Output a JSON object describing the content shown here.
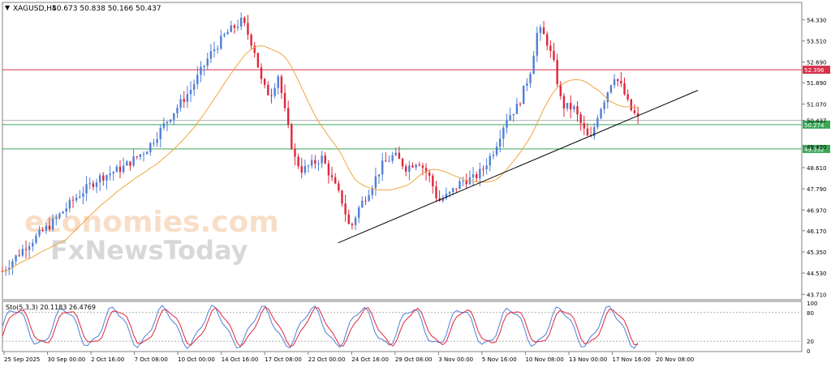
{
  "header": {
    "symbol": "XAGUSD,H4",
    "ohlc": "50.673 50.838 50.166 50.437"
  },
  "indicator": {
    "label": "Sto(5,3,3) 20.1183 26.4769",
    "levels": [
      100,
      80,
      20,
      0
    ],
    "level_labels": [
      "100",
      "80",
      "20",
      "0"
    ]
  },
  "watermark": {
    "line1": "economies.com",
    "line2": "FxNewsToday"
  },
  "colors": {
    "bull": "#4f7fd6",
    "bear": "#e0263a",
    "ma": "#f0a640",
    "resistance": "#d9304a",
    "support": "#3aa757",
    "trendline": "#000000",
    "stoch_main": "#4f7fd6",
    "stoch_signal": "#e0263a",
    "current_price": "#b0b0b0"
  },
  "chart_data": {
    "type": "candlestick",
    "ylim": [
      43.5,
      55.0
    ],
    "price_ticks": [
      "54.330",
      "53.510",
      "52.690",
      "51.890",
      "51.070",
      "50.437",
      "49.430",
      "48.610",
      "47.790",
      "46.970",
      "46.170",
      "45.350",
      "44.530",
      "43.710"
    ],
    "time_labels": [
      "25 Sep 2025",
      "30 Sep 00:00",
      "2 Oct 16:00",
      "7 Oct 08:00",
      "10 Oct 00:00",
      "14 Oct 16:00",
      "17 Oct 08:00",
      "22 Oct 00:00",
      "24 Oct 16:00",
      "29 Oct 08:00",
      "3 Nov 00:00",
      "5 Nov 16:00",
      "10 Nov 08:00",
      "13 Nov 00:00",
      "17 Nov 16:00",
      "20 Nov 08:00"
    ],
    "current_price": 50.437,
    "levels": [
      {
        "label": "52.396",
        "value": 52.396,
        "kind": "resistance"
      },
      {
        "label": "50.274",
        "value": 50.274,
        "kind": "support"
      },
      {
        "label": "49.332",
        "value": 49.332,
        "kind": "support"
      }
    ],
    "trendline": {
      "start": [
        0.42,
        45.7
      ],
      "end": [
        0.87,
        51.6
      ]
    },
    "anchors": [
      [
        0.0,
        44.6
      ],
      [
        0.03,
        45.6
      ],
      [
        0.06,
        46.4
      ],
      [
        0.09,
        47.4
      ],
      [
        0.12,
        48.2
      ],
      [
        0.15,
        48.6
      ],
      [
        0.18,
        49.3
      ],
      [
        0.21,
        50.6
      ],
      [
        0.235,
        51.6
      ],
      [
        0.26,
        53.0
      ],
      [
        0.28,
        53.8
      ],
      [
        0.3,
        54.3
      ],
      [
        0.315,
        53.2
      ],
      [
        0.325,
        51.8
      ],
      [
        0.335,
        51.4
      ],
      [
        0.345,
        52.2
      ],
      [
        0.355,
        50.5
      ],
      [
        0.365,
        49.0
      ],
      [
        0.375,
        48.5
      ],
      [
        0.39,
        48.8
      ],
      [
        0.4,
        49.0
      ],
      [
        0.41,
        48.3
      ],
      [
        0.425,
        47.3
      ],
      [
        0.435,
        46.2
      ],
      [
        0.445,
        47.0
      ],
      [
        0.46,
        47.8
      ],
      [
        0.475,
        48.7
      ],
      [
        0.49,
        49.1
      ],
      [
        0.505,
        48.6
      ],
      [
        0.52,
        48.9
      ],
      [
        0.535,
        48.2
      ],
      [
        0.545,
        47.3
      ],
      [
        0.56,
        47.6
      ],
      [
        0.575,
        48.1
      ],
      [
        0.59,
        48.2
      ],
      [
        0.6,
        48.5
      ],
      [
        0.615,
        49.3
      ],
      [
        0.63,
        50.5
      ],
      [
        0.645,
        51.0
      ],
      [
        0.66,
        52.3
      ],
      [
        0.67,
        54.0
      ],
      [
        0.68,
        53.6
      ],
      [
        0.69,
        52.6
      ],
      [
        0.7,
        51.0
      ],
      [
        0.715,
        50.9
      ],
      [
        0.725,
        50.2
      ],
      [
        0.735,
        49.6
      ],
      [
        0.745,
        50.7
      ],
      [
        0.755,
        51.4
      ],
      [
        0.765,
        52.2
      ],
      [
        0.775,
        51.7
      ],
      [
        0.785,
        50.9
      ],
      [
        0.795,
        50.5
      ]
    ]
  }
}
